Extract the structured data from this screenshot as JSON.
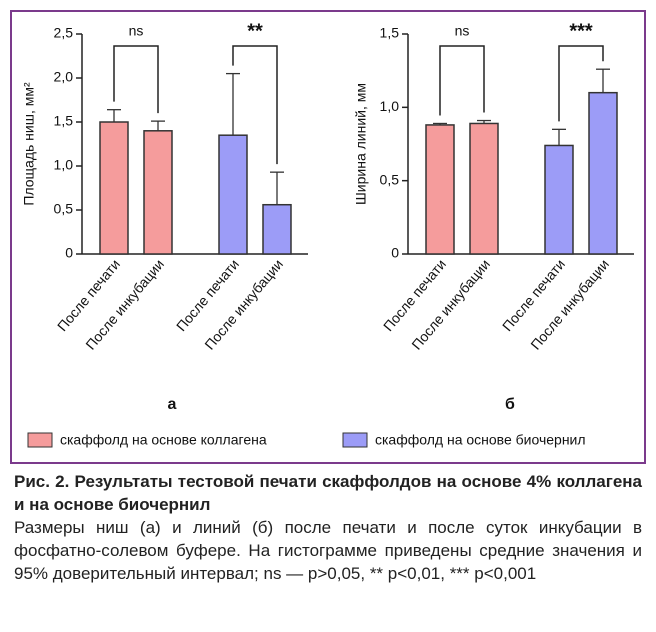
{
  "chart_data": [
    {
      "type": "bar",
      "label": "а",
      "ylabel": "Площадь ниш, мм²",
      "categories": [
        "После печати",
        "После инкубации"
      ],
      "series": [
        {
          "name": "скаффолд на основе коллагена",
          "color": "#f59c9c",
          "values": [
            1.5,
            1.4
          ],
          "errors": [
            0.14,
            0.11
          ]
        },
        {
          "name": "скаффолд на основе биочернил",
          "color": "#9c9cf7",
          "values": [
            1.35,
            0.56
          ],
          "errors": [
            0.7,
            0.37
          ]
        }
      ],
      "annotations": [
        "ns",
        "**"
      ],
      "ylim": [
        0,
        2.5
      ],
      "yticks": [
        0,
        {
          "value": 0.5,
          "label": "0,5"
        },
        {
          "value": 1,
          "label": "1,0"
        },
        {
          "value": 1.5,
          "label": "1,5"
        },
        {
          "value": 2,
          "label": "2,0"
        },
        {
          "value": 2.5,
          "label": "2,5"
        }
      ]
    },
    {
      "type": "bar",
      "label": "б",
      "ylabel": "Ширина линий, мм",
      "categories": [
        "После печати",
        "После инкубации"
      ],
      "series": [
        {
          "color": "#f59c9c",
          "values": [
            0.88,
            0.89
          ],
          "errors": [
            0.01,
            0.02
          ]
        },
        {
          "color": "#9c9cf7",
          "values": [
            0.74,
            1.1
          ],
          "errors": [
            0.11,
            0.16
          ]
        }
      ],
      "annotations": [
        "ns",
        "***"
      ],
      "ylim": [
        0,
        1.5
      ],
      "yticks": [
        0,
        {
          "value": 0.5,
          "label": "0,5"
        },
        {
          "value": 1,
          "label": "1,0"
        },
        {
          "value": 1.5,
          "label": "1,5"
        }
      ]
    }
  ],
  "caption": {
    "title": "Рис. 2. Результаты тестовой печати скаффолдов на основе 4% коллагена и на основе биочернил",
    "text": "Размеры ниш (а) и линий (б) после печати и после суток инкубации в фосфатно-солевом буфере. На гистограмме приведены средние значения и 95% доверительный интервал; ns — p>0,05, ** p<0,01, *** p<0,001"
  }
}
